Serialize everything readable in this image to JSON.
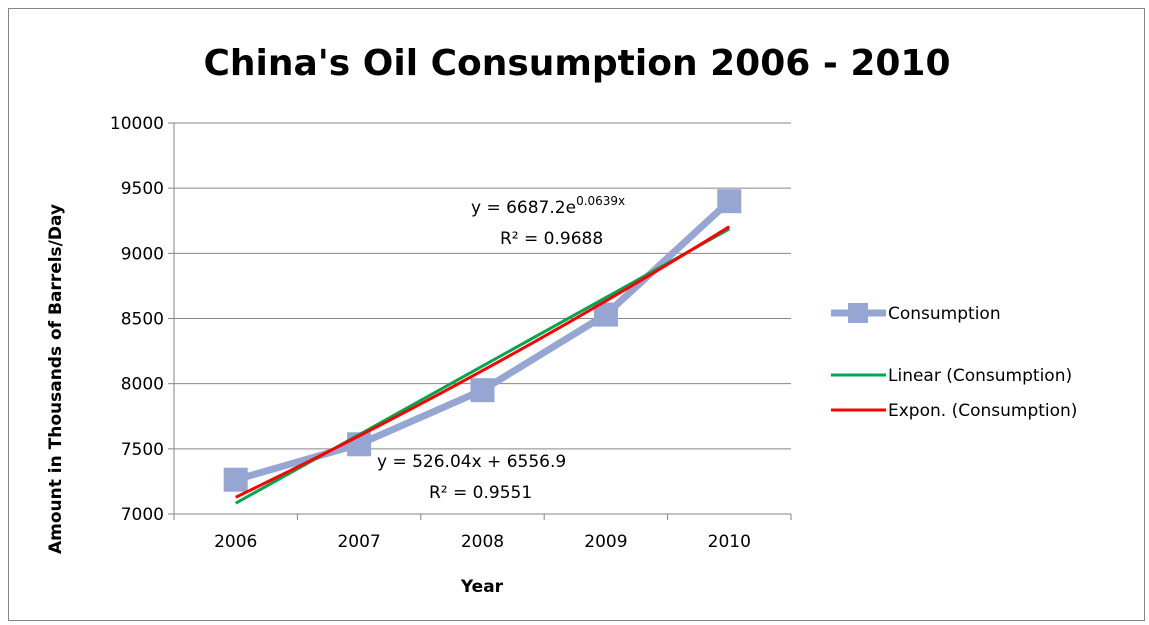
{
  "chart_data": {
    "type": "line",
    "title": "China's Oil Consumption 2006 - 2010",
    "xlabel": "Year",
    "ylabel": "Amount in Thousands of Barrels/Day",
    "categories": [
      "2006",
      "2007",
      "2008",
      "2009",
      "2010"
    ],
    "ylim": [
      7000,
      10000
    ],
    "yticks": [
      7000,
      7500,
      8000,
      8500,
      9000,
      9500,
      10000
    ],
    "grid": true,
    "legend_position": "right",
    "series": [
      {
        "name": "Consumption",
        "values": [
          7263,
          7535,
          7950,
          8530,
          9400
        ],
        "color": "#95A6D3",
        "marker": "square"
      }
    ],
    "trendlines": [
      {
        "name": "Linear (Consumption)",
        "kind": "linear",
        "color": "#00A650",
        "slope": 526.04,
        "intercept": 6556.9,
        "equation": "y = 526.04x + 6556.9",
        "r2_label": "R² = 0.9551"
      },
      {
        "name": "Expon. (Consumption)",
        "kind": "exponential",
        "color": "#FF0000",
        "coefficient": 6687.2,
        "rate": 0.0639,
        "equation_base": "y = 6687.2e",
        "equation_exponent": "0.0639x",
        "r2_label": "R² = 0.9688"
      }
    ]
  }
}
